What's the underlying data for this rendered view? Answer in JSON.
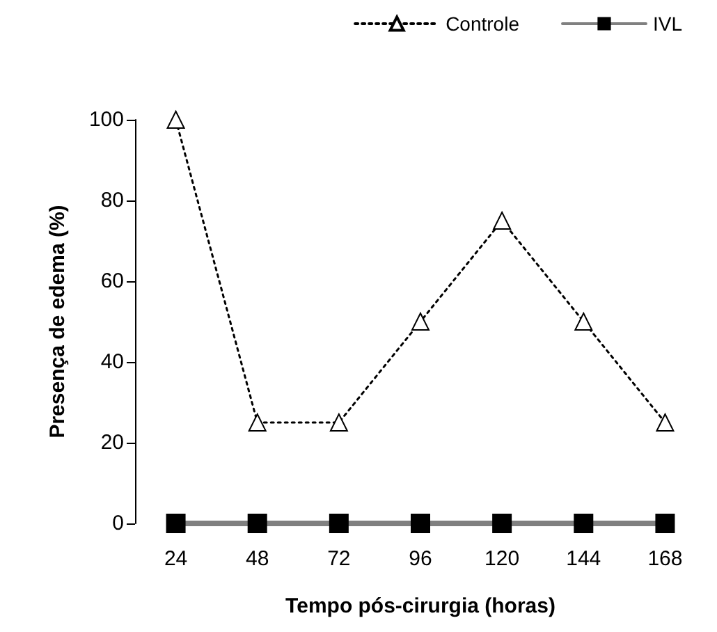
{
  "chart_data": {
    "type": "line",
    "xlabel": "Tempo pós-cirurgia (horas)",
    "ylabel": "Presença de edema (%)",
    "categories": [
      "24",
      "48",
      "72",
      "96",
      "120",
      "144",
      "168"
    ],
    "series": [
      {
        "name": "Controle",
        "color": "#000000",
        "marker": "triangle",
        "line_style": "dotted",
        "values": [
          100,
          25,
          25,
          50,
          75,
          50,
          25
        ]
      },
      {
        "name": "IVL",
        "color": "#808080",
        "marker": "square",
        "line_style": "solid",
        "values": [
          0,
          0,
          0,
          0,
          0,
          0,
          0
        ]
      }
    ],
    "ylim": [
      0,
      100
    ],
    "yticks": [
      0,
      20,
      40,
      60,
      80,
      100
    ],
    "grid": false,
    "legend": "top right"
  }
}
